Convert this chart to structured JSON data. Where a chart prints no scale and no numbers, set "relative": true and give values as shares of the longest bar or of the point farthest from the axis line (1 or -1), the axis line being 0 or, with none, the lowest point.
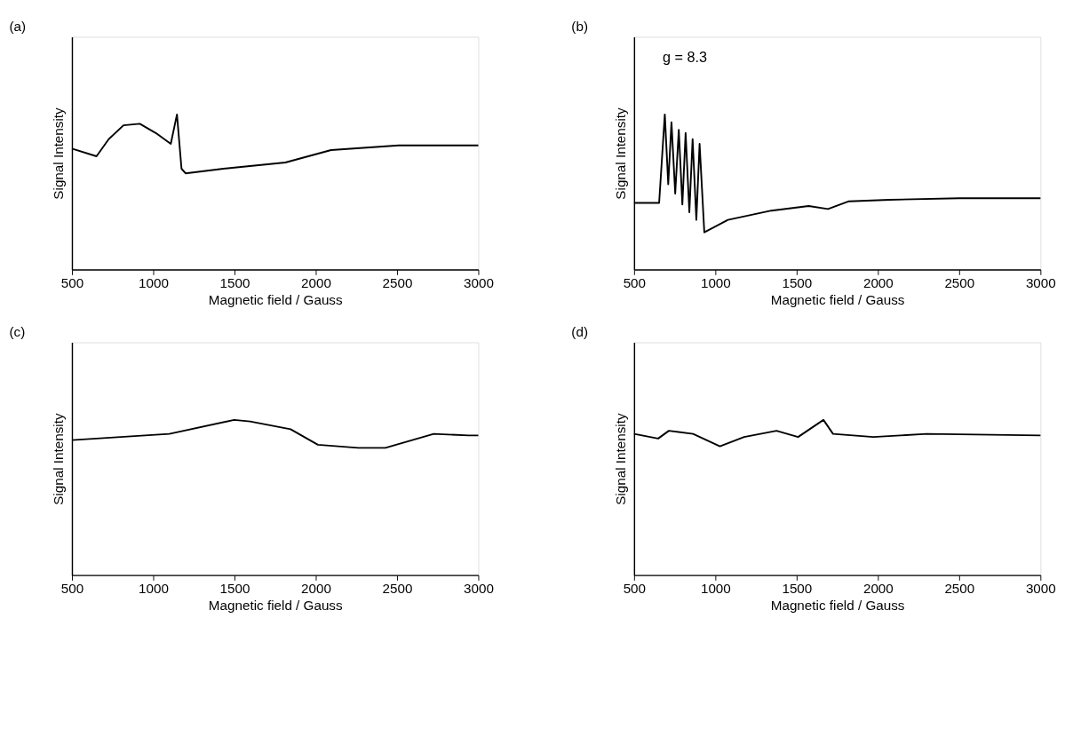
{
  "chart_data": [
    {
      "type": "line",
      "title": "(a)",
      "xlabel": "Magnetic field / Gauss",
      "ylabel": "Signal Intensity",
      "relative": true,
      "tick_labels": "x",
      "grid": false,
      "xlim": [
        500,
        3000
      ],
      "xticks": [
        500,
        1000,
        1500,
        2000,
        2500,
        3000
      ],
      "series": [
        {
          "color": "#000000",
          "x": [
            500,
            651,
            726,
            817,
            917,
            1016,
            1108,
            1146,
            1174,
            1199,
            1431,
            1813,
            2094,
            2510,
            2940,
            3000
          ],
          "values": [
            0.78,
            0.73,
            0.84,
            0.93,
            0.94,
            0.88,
            0.81,
            1.0,
            0.65,
            0.62,
            0.65,
            0.69,
            0.77,
            0.8,
            0.8,
            0.8
          ]
        }
      ]
    },
    {
      "type": "line",
      "title": "(b)",
      "xlabel": "Magnetic field / Gauss",
      "ylabel": "Signal Intensity",
      "relative": true,
      "tick_labels": "x",
      "grid": false,
      "xlim": [
        500,
        3000
      ],
      "xticks": [
        500,
        1000,
        1500,
        2000,
        2500,
        3000
      ],
      "annotations": [
        "g = 8.3"
      ],
      "series": [
        {
          "color": "#000000",
          "x": [
            500,
            654,
            689,
            710,
            730,
            753,
            775,
            797,
            817,
            840,
            860,
            883,
            903,
            932,
            1077,
            1211,
            1345,
            1574,
            1693,
            1822,
            2071,
            2500,
            3000
          ],
          "values": [
            0.43,
            0.43,
            1.0,
            0.55,
            0.95,
            0.49,
            0.9,
            0.42,
            0.88,
            0.37,
            0.84,
            0.32,
            0.81,
            0.24,
            0.32,
            0.35,
            0.38,
            0.41,
            0.39,
            0.44,
            0.45,
            0.46,
            0.46
          ]
        }
      ]
    },
    {
      "type": "line",
      "title": "(c)",
      "xlabel": "Magnetic field / Gauss",
      "ylabel": "Signal Intensity",
      "relative": true,
      "tick_labels": "x",
      "grid": false,
      "xlim": [
        500,
        3000
      ],
      "xticks": [
        500,
        1000,
        1500,
        2000,
        2500,
        3000
      ],
      "series": [
        {
          "color": "#000000",
          "x": [
            500,
            1099,
            1498,
            1596,
            1845,
            2013,
            2262,
            2428,
            2726,
            2940,
            3000
          ],
          "values": [
            0.87,
            0.91,
            1.0,
            0.99,
            0.94,
            0.84,
            0.82,
            0.82,
            0.91,
            0.9,
            0.9
          ]
        }
      ]
    },
    {
      "type": "line",
      "title": "(d)",
      "xlabel": "Magnetic field / Gauss",
      "ylabel": "Signal Intensity",
      "relative": true,
      "tick_labels": "x",
      "grid": false,
      "xlim": [
        500,
        3000
      ],
      "xticks": [
        500,
        1000,
        1500,
        2000,
        2500,
        3000
      ],
      "series": [
        {
          "color": "#000000",
          "x": [
            500,
            648,
            714,
            863,
            1028,
            1177,
            1376,
            1509,
            1665,
            1724,
            1972,
            2300,
            3000
          ],
          "values": [
            0.91,
            0.88,
            0.93,
            0.91,
            0.83,
            0.89,
            0.93,
            0.89,
            1.0,
            0.91,
            0.89,
            0.91,
            0.9
          ]
        }
      ]
    }
  ]
}
